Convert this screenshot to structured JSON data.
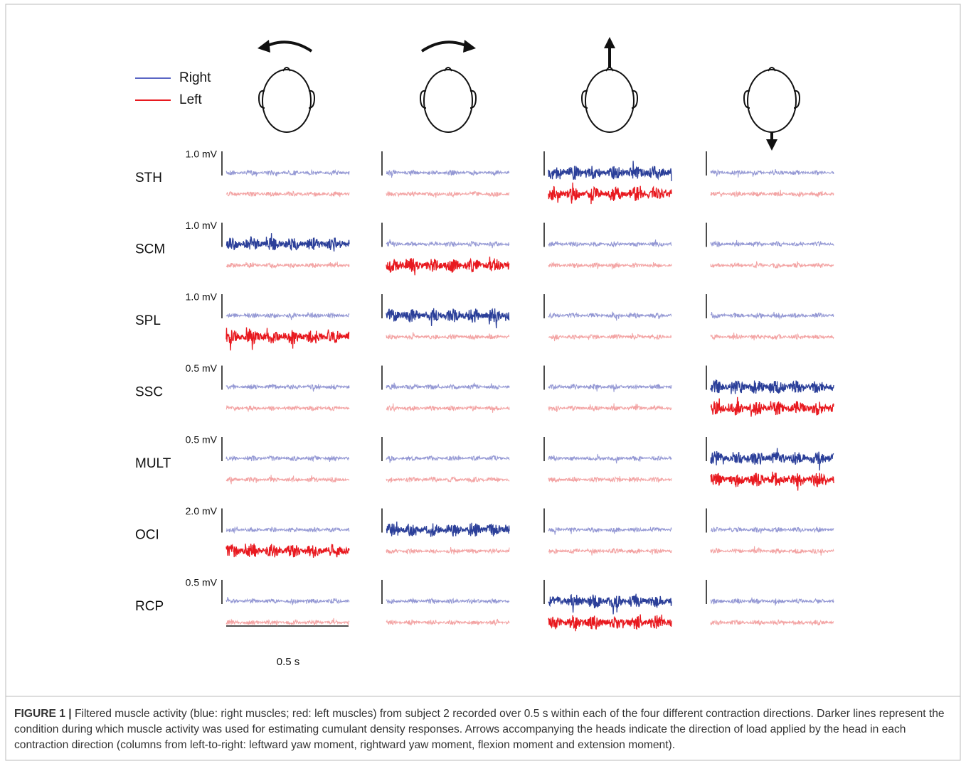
{
  "legend": [
    {
      "label": "Right",
      "color": "#5a66c4"
    },
    {
      "label": "Left",
      "color": "#e8191f"
    }
  ],
  "muscles": [
    {
      "label": "STH",
      "scale": "1.0 mV",
      "right": [
        "#9498d4",
        "#9498d4",
        "#2b3f99",
        "#9498d4"
      ],
      "left": [
        "#f3a3a3",
        "#f3a3a3",
        "#e8191f",
        "#f3a3a3"
      ]
    },
    {
      "label": "SCM",
      "scale": "1.0 mV",
      "right": [
        "#2b3f99",
        "#9498d4",
        "#9498d4",
        "#9498d4"
      ],
      "left": [
        "#f3a3a3",
        "#e8191f",
        "#f3a3a3",
        "#f3a3a3"
      ]
    },
    {
      "label": "SPL",
      "scale": "1.0 mV",
      "right": [
        "#9498d4",
        "#2b3f99",
        "#9498d4",
        "#9498d4"
      ],
      "left": [
        "#e8191f",
        "#f3a3a3",
        "#f3a3a3",
        "#f3a3a3"
      ]
    },
    {
      "label": "SSC",
      "scale": "0.5 mV",
      "right": [
        "#9498d4",
        "#9498d4",
        "#9498d4",
        "#2b3f99"
      ],
      "left": [
        "#f3a3a3",
        "#f3a3a3",
        "#f3a3a3",
        "#e8191f"
      ]
    },
    {
      "label": "MULT",
      "scale": "0.5 mV",
      "right": [
        "#9498d4",
        "#9498d4",
        "#9498d4",
        "#2b3f99"
      ],
      "left": [
        "#f3a3a3",
        "#f3a3a3",
        "#f3a3a3",
        "#e8191f"
      ]
    },
    {
      "label": "OCI",
      "scale": "2.0 mV",
      "right": [
        "#9498d4",
        "#2b3f99",
        "#9498d4",
        "#9498d4"
      ],
      "left": [
        "#e8191f",
        "#f3a3a3",
        "#f3a3a3",
        "#f3a3a3"
      ]
    },
    {
      "label": "RCP",
      "scale": "0.5 mV",
      "right": [
        "#9498d4",
        "#9498d4",
        "#2b3f99",
        "#9498d4"
      ],
      "left": [
        "#f3a3a3",
        "#f3a3a3",
        "#e8191f",
        "#f3a3a3"
      ]
    }
  ],
  "time_scale": "0.5 s",
  "caption": {
    "label": "FIGURE 1 |",
    "text": "Filtered muscle activity (blue: right muscles; red: left muscles) from subject 2 recorded over 0.5 s within each of the four different contraction directions. Darker lines represent the condition during which muscle activity was used for estimating cumulant density responses. Arrows accompanying the heads indicate the direction of load applied by the head in each contraction direction (columns from left-to-right: leftward yaw moment, rightward yaw moment, flexion moment and extension moment)."
  }
}
